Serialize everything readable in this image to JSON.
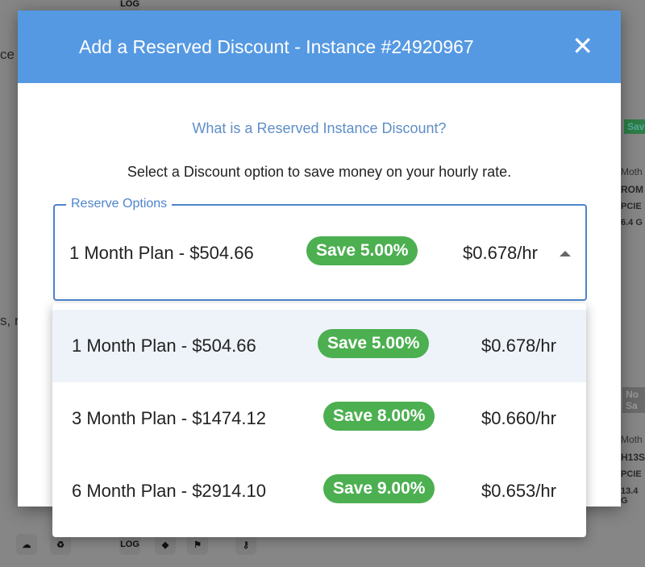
{
  "background": {
    "fragments": [
      "ce",
      "s, r",
      "LOG",
      "Sav",
      "Moth",
      "ROM",
      "PCIE",
      "6.4 G",
      "No Sa",
      "Moth",
      "H13S",
      "PCIE",
      "13.4 G",
      "LOG"
    ]
  },
  "modal": {
    "title": "Add a Reserved Discount - Instance #24920967",
    "close_icon": "close-icon",
    "info_link": "What is a Reserved Instance Discount?",
    "description": "Select a Discount option to save money on your hourly rate."
  },
  "select": {
    "label": "Reserve Options",
    "selected": {
      "plan": "1 Month Plan - $504.66",
      "save": "Save 5.00%",
      "rate": "$0.678/hr"
    },
    "options": [
      {
        "plan": "1 Month Plan - $504.66",
        "save": "Save 5.00%",
        "rate": "$0.678/hr"
      },
      {
        "plan": "3 Month Plan - $1474.12",
        "save": "Save 8.00%",
        "rate": "$0.660/hr"
      },
      {
        "plan": "6 Month Plan - $2914.10",
        "save": "Save 9.00%",
        "rate": "$0.653/hr"
      }
    ]
  },
  "colors": {
    "header": "#5599e2",
    "badge": "#4caf50",
    "accent": "#4d84cc"
  }
}
